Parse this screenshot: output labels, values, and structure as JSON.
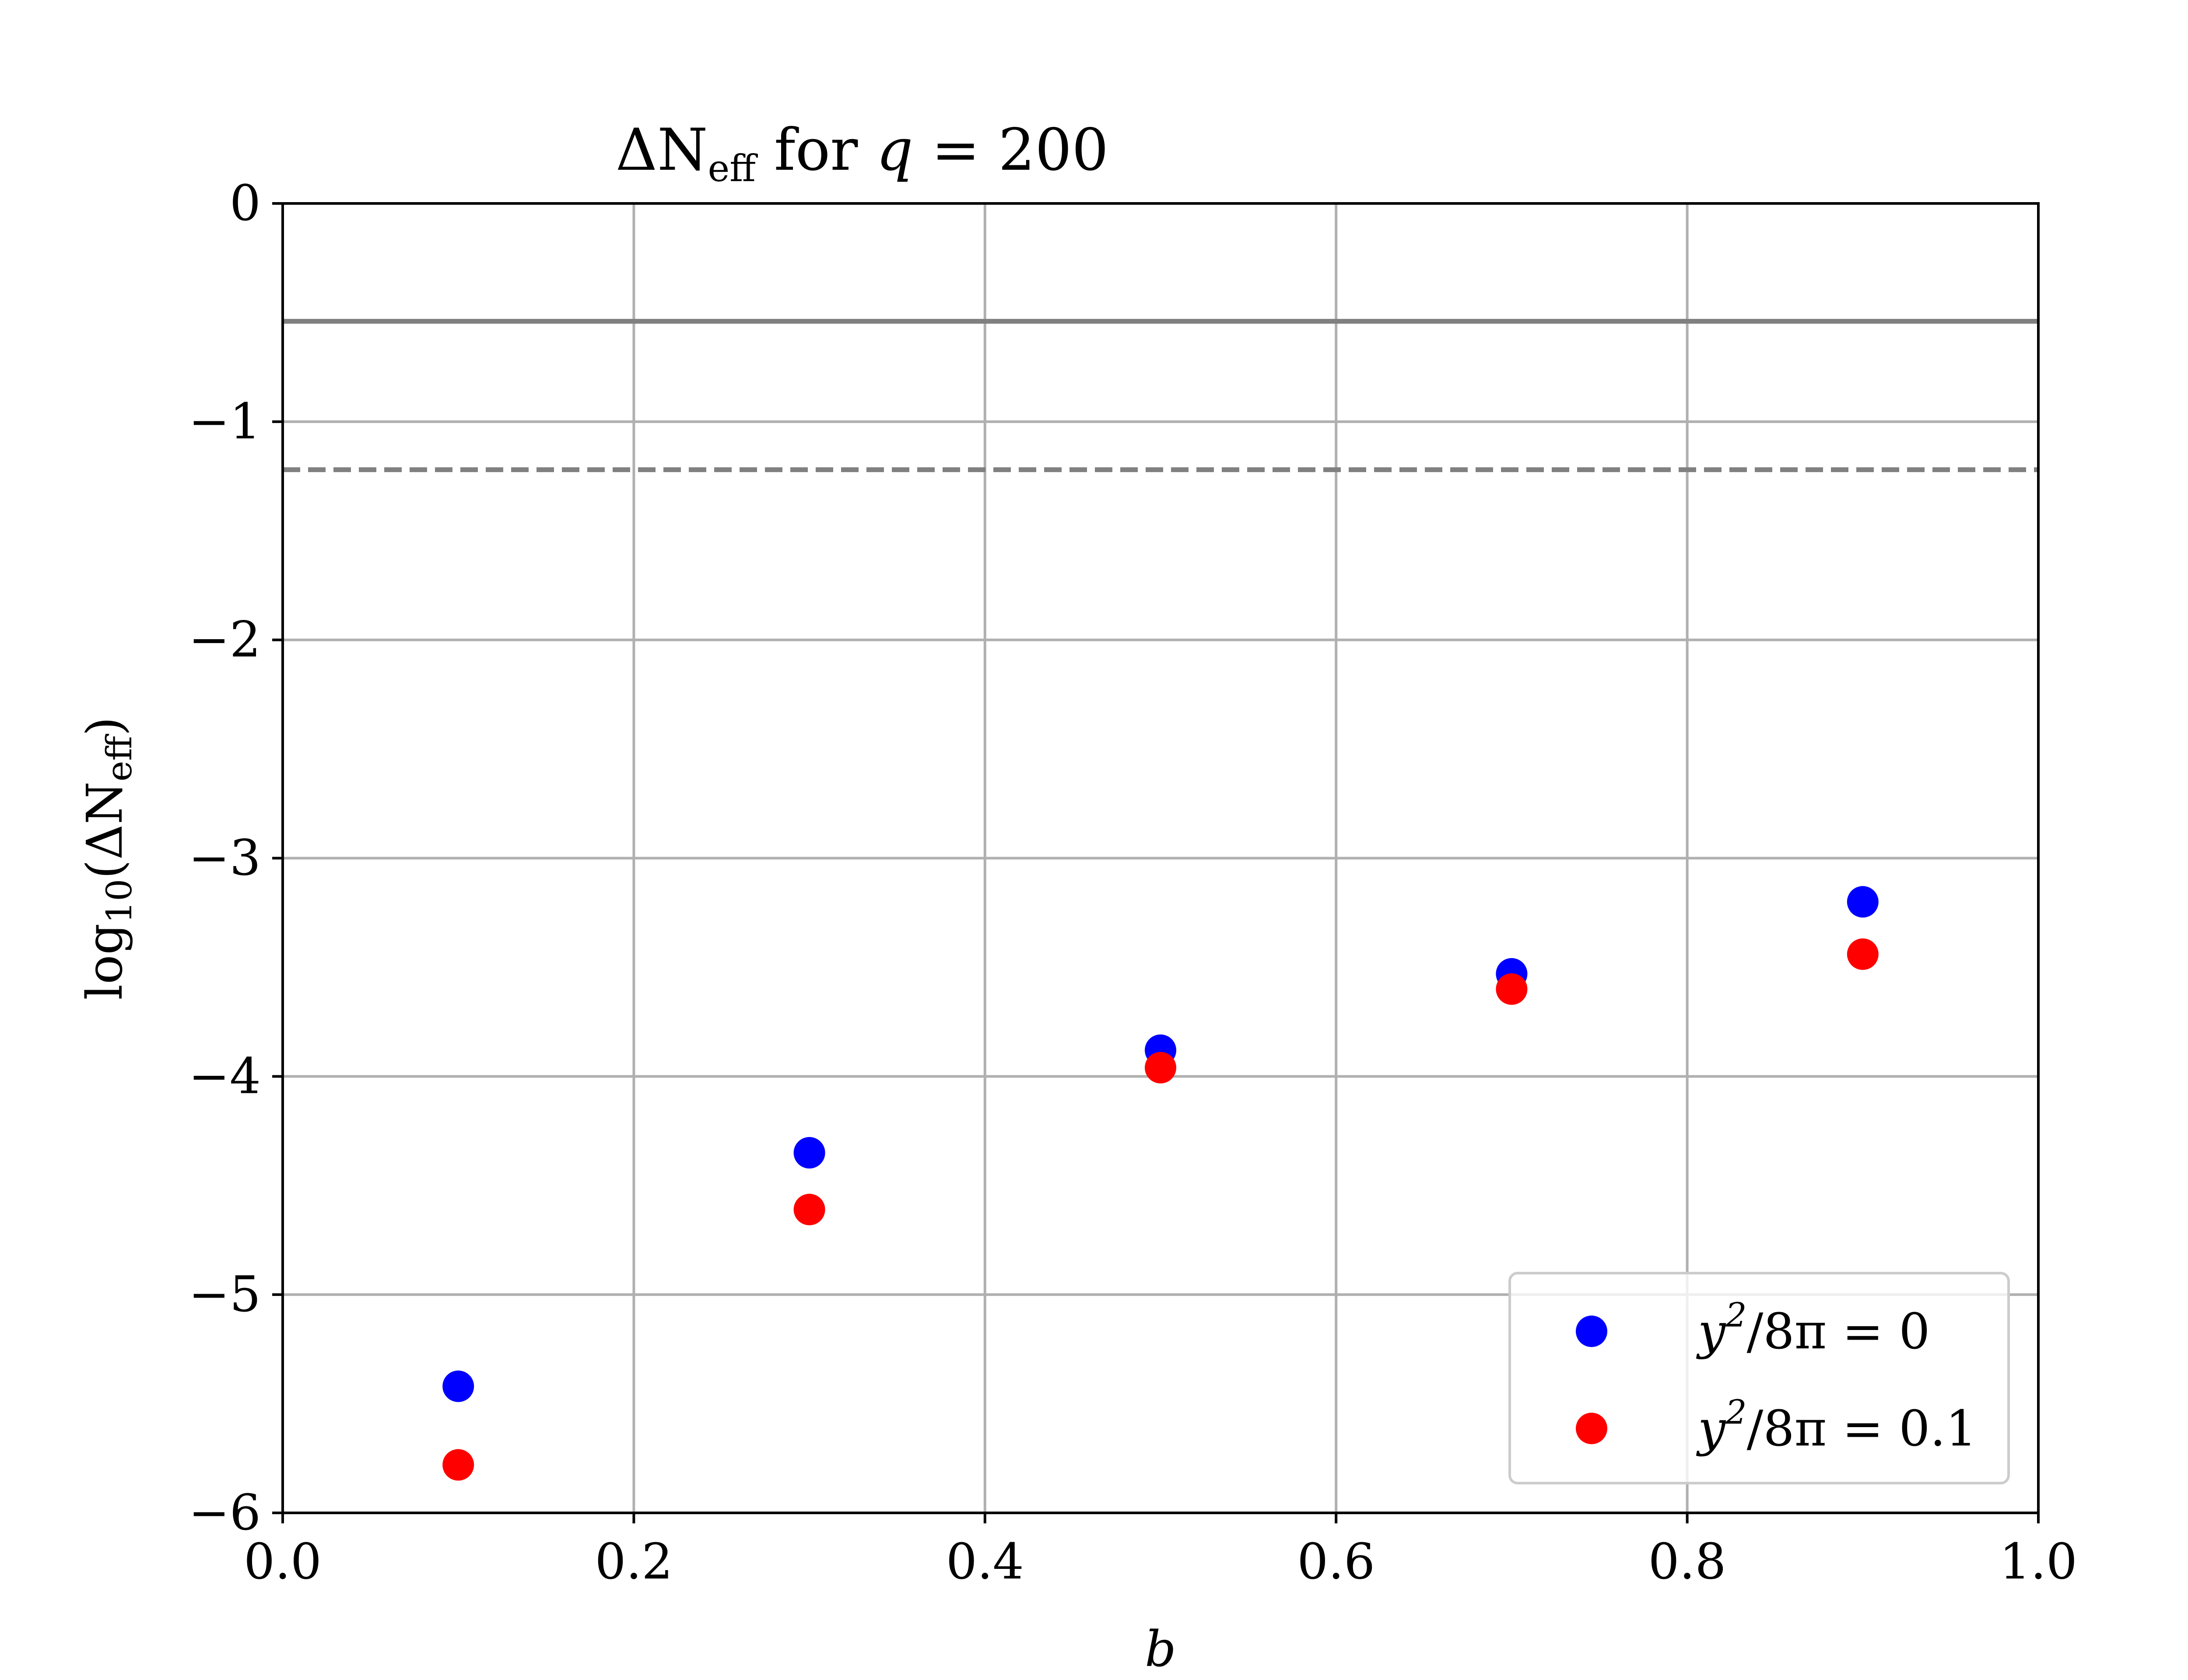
{
  "chart_data": {
    "type": "scatter",
    "title": {
      "prefix": "ΔN",
      "subscript": "eff",
      "middle": " for ",
      "variable": "q",
      "equals": " = ",
      "value": "200"
    },
    "xlabel": "b",
    "ylabel": {
      "prefix": "log",
      "subscript": "10",
      "inner_open": "(ΔN",
      "inner_subscript": "eff",
      "inner_close": ")"
    },
    "xlim": [
      0.0,
      1.0
    ],
    "ylim": [
      -6,
      0
    ],
    "x_ticks": [
      {
        "value": 0.0,
        "label": "0.0"
      },
      {
        "value": 0.2,
        "label": "0.2"
      },
      {
        "value": 0.4,
        "label": "0.4"
      },
      {
        "value": 0.6,
        "label": "0.6"
      },
      {
        "value": 0.8,
        "label": "0.8"
      },
      {
        "value": 1.0,
        "label": "1.0"
      }
    ],
    "y_ticks": [
      {
        "value": 0,
        "label": "0"
      },
      {
        "value": -1,
        "label": "−1"
      },
      {
        "value": -2,
        "label": "−2"
      },
      {
        "value": -3,
        "label": "−3"
      },
      {
        "value": -4,
        "label": "−4"
      },
      {
        "value": -5,
        "label": "−5"
      },
      {
        "value": -6,
        "label": "−6"
      }
    ],
    "grid": true,
    "legend_position": "bottom-right",
    "reference_lines": [
      {
        "y": -0.54,
        "style": "solid",
        "color": "#808080"
      },
      {
        "y": -1.22,
        "style": "dashed",
        "color": "#808080"
      }
    ],
    "series": [
      {
        "legend_label": {
          "base": "y",
          "sup": "2",
          "rest": "/8π = 0"
        },
        "color": "#0000ff",
        "points": [
          {
            "x": 0.1,
            "y": -5.42
          },
          {
            "x": 0.3,
            "y": -4.35
          },
          {
            "x": 0.5,
            "y": -3.88
          },
          {
            "x": 0.7,
            "y": -3.53
          },
          {
            "x": 0.9,
            "y": -3.2
          }
        ]
      },
      {
        "legend_label": {
          "base": "y",
          "sup": "2",
          "rest": "/8π = 0.1"
        },
        "color": "#ff0000",
        "points": [
          {
            "x": 0.1,
            "y": -5.78
          },
          {
            "x": 0.3,
            "y": -4.61
          },
          {
            "x": 0.5,
            "y": -3.96
          },
          {
            "x": 0.7,
            "y": -3.6
          },
          {
            "x": 0.9,
            "y": -3.44
          }
        ]
      }
    ]
  }
}
